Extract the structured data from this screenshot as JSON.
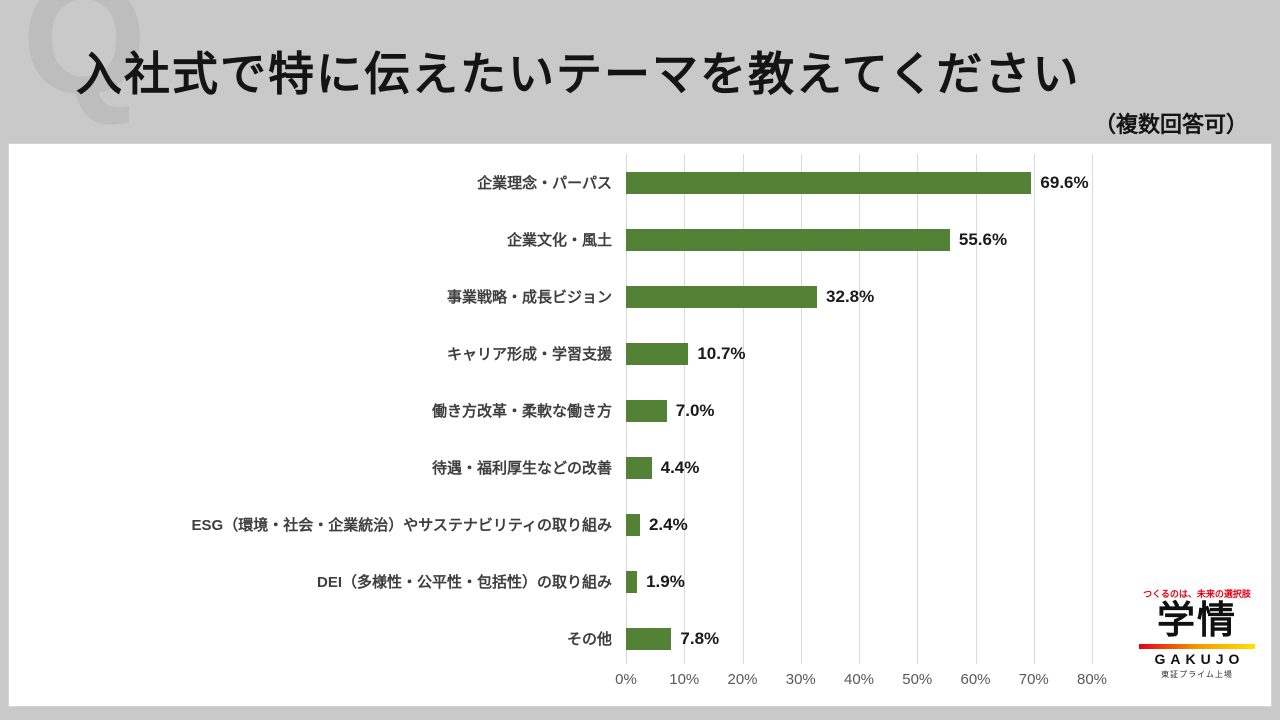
{
  "header": {
    "watermark": "Q",
    "title": "入社式で特に伝えたいテーマを教えてください",
    "note": "（複数回答可）"
  },
  "chart_data": {
    "type": "bar",
    "orientation": "horizontal",
    "title": "入社式で特に伝えたいテーマを教えてください（複数回答可）",
    "categories": [
      "企業理念・パーパス",
      "企業文化・風土",
      "事業戦略・成長ビジョン",
      "キャリア形成・学習支援",
      "働き方改革・柔軟な働き方",
      "待遇・福利厚生などの改善",
      "ESG（環境・社会・企業統治）やサステナビリティの取り組み",
      "DEI（多様性・公平性・包括性）の取り組み",
      "その他"
    ],
    "values": [
      69.6,
      55.6,
      32.8,
      10.7,
      7.0,
      4.4,
      2.4,
      1.9,
      7.8
    ],
    "value_labels": [
      "69.6%",
      "55.6%",
      "32.8%",
      "10.7%",
      "7.0%",
      "4.4%",
      "2.4%",
      "1.9%",
      "7.8%"
    ],
    "x_ticks": [
      "0%",
      "10%",
      "20%",
      "30%",
      "40%",
      "50%",
      "60%",
      "70%",
      "80%"
    ],
    "xlim": [
      0,
      80
    ],
    "xlabel": "",
    "ylabel": "",
    "bar_color": "#538135",
    "grid": true,
    "legend": false
  },
  "logo": {
    "tagline": "つくるのは、未来の選択肢",
    "name": "学情",
    "name_en": "GAKUJO",
    "listing": "東証プライム上場",
    "tagline_color": "#e60012"
  }
}
